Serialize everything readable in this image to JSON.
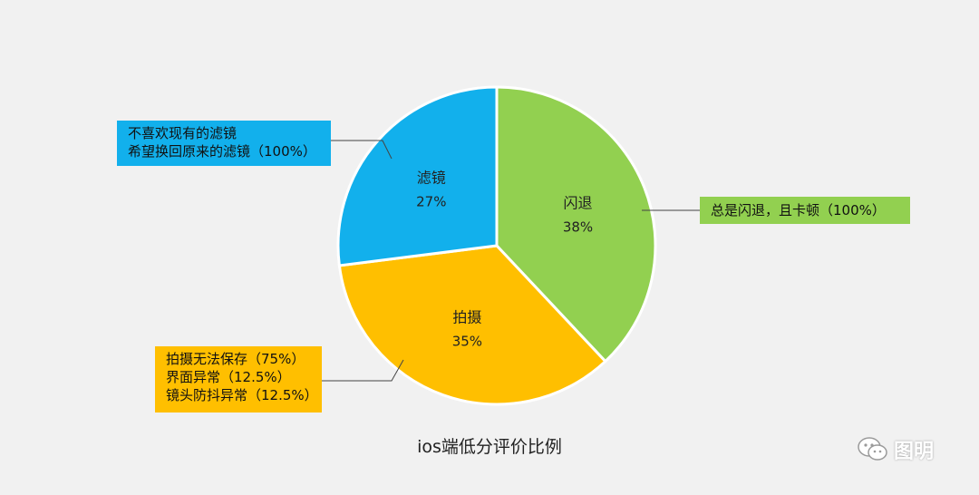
{
  "chart_data": {
    "type": "pie",
    "title": "ios端低分评价比例",
    "slices": [
      {
        "label": "闪退",
        "value": 38,
        "value_label": "38%",
        "color": "#92d050"
      },
      {
        "label": "拍摄",
        "value": 35,
        "value_label": "35%",
        "color": "#ffbf00"
      },
      {
        "label": "滤镜",
        "value": 27,
        "value_label": "27%",
        "color": "#12b0ec"
      }
    ],
    "annotations": [
      {
        "slice": "滤镜",
        "lines": [
          "不喜欢现有的滤镜",
          "希望换回原来的滤镜（100%）"
        ],
        "color": "#12b0ec"
      },
      {
        "slice": "闪退",
        "lines": [
          "总是闪退，且卡顿（100%）"
        ],
        "color": "#92d050"
      },
      {
        "slice": "拍摄",
        "lines": [
          "拍摄无法保存（75%）",
          "界面异常（12.5%）",
          "镜头防抖异常（12.5%）"
        ],
        "color": "#ffbf00"
      }
    ]
  },
  "watermark": {
    "text": "图明",
    "icon": "wechat-icon"
  }
}
